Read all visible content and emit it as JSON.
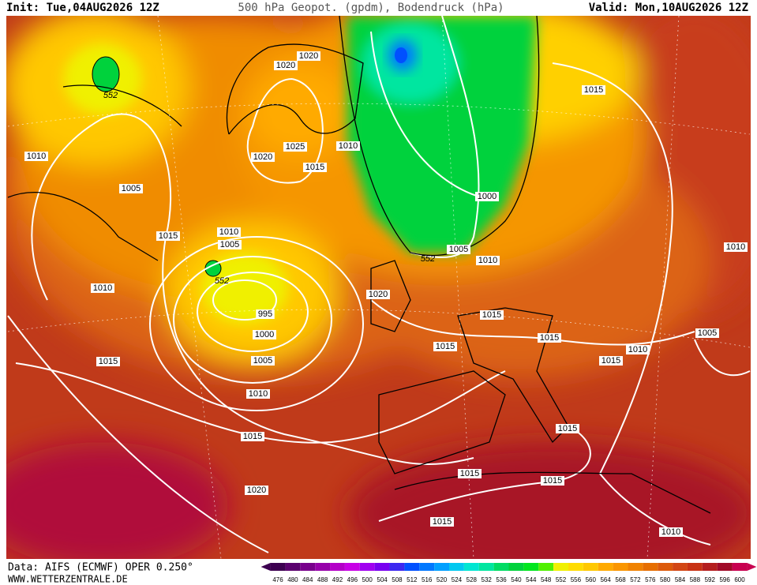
{
  "header": {
    "init": "Init: Tue,04AUG2026 12Z",
    "title": "500 hPa Geopot. (gpdm), Bodendruck (hPa)",
    "valid": "Valid: Mon,10AUG2026 12Z"
  },
  "map": {
    "isobar_labels": [
      1020,
      1020,
      1025,
      1020,
      1010,
      1015,
      1010,
      1005,
      1015,
      1010,
      1005,
      1010,
      995,
      1000,
      1005,
      1010,
      1015,
      1015,
      1020,
      1015,
      1000,
      1005,
      1010,
      1020,
      1015,
      1015,
      1015,
      1015,
      1010,
      1005,
      1010,
      1015,
      1015,
      1015,
      1015,
      1010
    ],
    "contour_labels": [
      552,
      552,
      552
    ]
  },
  "footer": {
    "source": "Data: AIFS (ECMWF) OPER 0.250°",
    "site": "WWW.WETTERZENTRALE.DE"
  },
  "scale": {
    "labels": [
      476,
      480,
      484,
      488,
      492,
      496,
      500,
      504,
      508,
      512,
      516,
      520,
      524,
      528,
      532,
      536,
      540,
      544,
      548,
      552,
      556,
      560,
      564,
      568,
      572,
      576,
      580,
      584,
      588,
      592,
      596,
      600
    ],
    "colors": [
      "#3c0050",
      "#5a006e",
      "#78008c",
      "#9600aa",
      "#b400c8",
      "#c800e6",
      "#a000f0",
      "#7800f0",
      "#3c28f0",
      "#0050ff",
      "#0078ff",
      "#00a0ff",
      "#00c8f0",
      "#00e6d2",
      "#00e6a0",
      "#00dc64",
      "#00d23c",
      "#00e61e",
      "#50f000",
      "#f0f000",
      "#ffdc00",
      "#ffc800",
      "#ffaa00",
      "#fa9600",
      "#f08200",
      "#e66e00",
      "#dc5a0a",
      "#d24614",
      "#c83214",
      "#b41e1e",
      "#a00a28",
      "#c80050"
    ]
  }
}
